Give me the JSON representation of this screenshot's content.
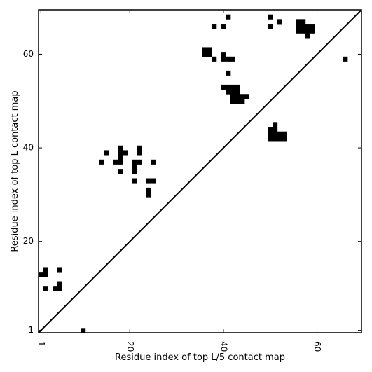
{
  "chart_data": {
    "type": "heatmap",
    "title": "",
    "xlabel": "Residue index of top L/5 contact map",
    "ylabel": "Residue index of top L contact map",
    "xlim": [
      0.5,
      69.5
    ],
    "ylim": [
      0.5,
      69.5
    ],
    "x_ticks": [
      1,
      20,
      40,
      60
    ],
    "y_ticks": [
      1,
      20,
      40,
      60
    ],
    "x_tick_labels": [
      "1",
      "20",
      "40",
      "60"
    ],
    "y_tick_labels": [
      "1",
      "20",
      "40",
      "60"
    ],
    "x_tick_rotation": -90,
    "diagonal": true,
    "grid": false,
    "cell_color": "#000000",
    "background": "#ffffff",
    "cells": [
      [
        10,
        1
      ],
      [
        1,
        13
      ],
      [
        2,
        13
      ],
      [
        2,
        14
      ],
      [
        5,
        14
      ],
      [
        2,
        10
      ],
      [
        4,
        10
      ],
      [
        5,
        10
      ],
      [
        5,
        11
      ],
      [
        14,
        37
      ],
      [
        15,
        39
      ],
      [
        17,
        37
      ],
      [
        18,
        37
      ],
      [
        18,
        38
      ],
      [
        18,
        39
      ],
      [
        18,
        40
      ],
      [
        19,
        39
      ],
      [
        18,
        35
      ],
      [
        21,
        33
      ],
      [
        21,
        35
      ],
      [
        21,
        36
      ],
      [
        21,
        37
      ],
      [
        22,
        37
      ],
      [
        22,
        39
      ],
      [
        22,
        40
      ],
      [
        24,
        30
      ],
      [
        24,
        31
      ],
      [
        24,
        33
      ],
      [
        25,
        33
      ],
      [
        25,
        37
      ],
      [
        36,
        60
      ],
      [
        36,
        61
      ],
      [
        37,
        60
      ],
      [
        37,
        61
      ],
      [
        38,
        59
      ],
      [
        38,
        66
      ],
      [
        40,
        59
      ],
      [
        40,
        60
      ],
      [
        40,
        66
      ],
      [
        41,
        59
      ],
      [
        41,
        68
      ],
      [
        42,
        59
      ],
      [
        41,
        56
      ],
      [
        40,
        53
      ],
      [
        41,
        52
      ],
      [
        41,
        53
      ],
      [
        42,
        50
      ],
      [
        42,
        51
      ],
      [
        42,
        52
      ],
      [
        42,
        53
      ],
      [
        43,
        50
      ],
      [
        43,
        51
      ],
      [
        43,
        52
      ],
      [
        43,
        53
      ],
      [
        44,
        50
      ],
      [
        44,
        51
      ],
      [
        45,
        51
      ],
      [
        50,
        42
      ],
      [
        50,
        43
      ],
      [
        50,
        44
      ],
      [
        51,
        42
      ],
      [
        51,
        43
      ],
      [
        51,
        44
      ],
      [
        51,
        45
      ],
      [
        52,
        42
      ],
      [
        52,
        43
      ],
      [
        53,
        42
      ],
      [
        53,
        43
      ],
      [
        50,
        66
      ],
      [
        50,
        68
      ],
      [
        52,
        67
      ],
      [
        56,
        65
      ],
      [
        56,
        66
      ],
      [
        56,
        67
      ],
      [
        57,
        65
      ],
      [
        57,
        66
      ],
      [
        57,
        67
      ],
      [
        58,
        64
      ],
      [
        58,
        65
      ],
      [
        58,
        66
      ],
      [
        59,
        65
      ],
      [
        59,
        66
      ],
      [
        66,
        59
      ]
    ]
  }
}
